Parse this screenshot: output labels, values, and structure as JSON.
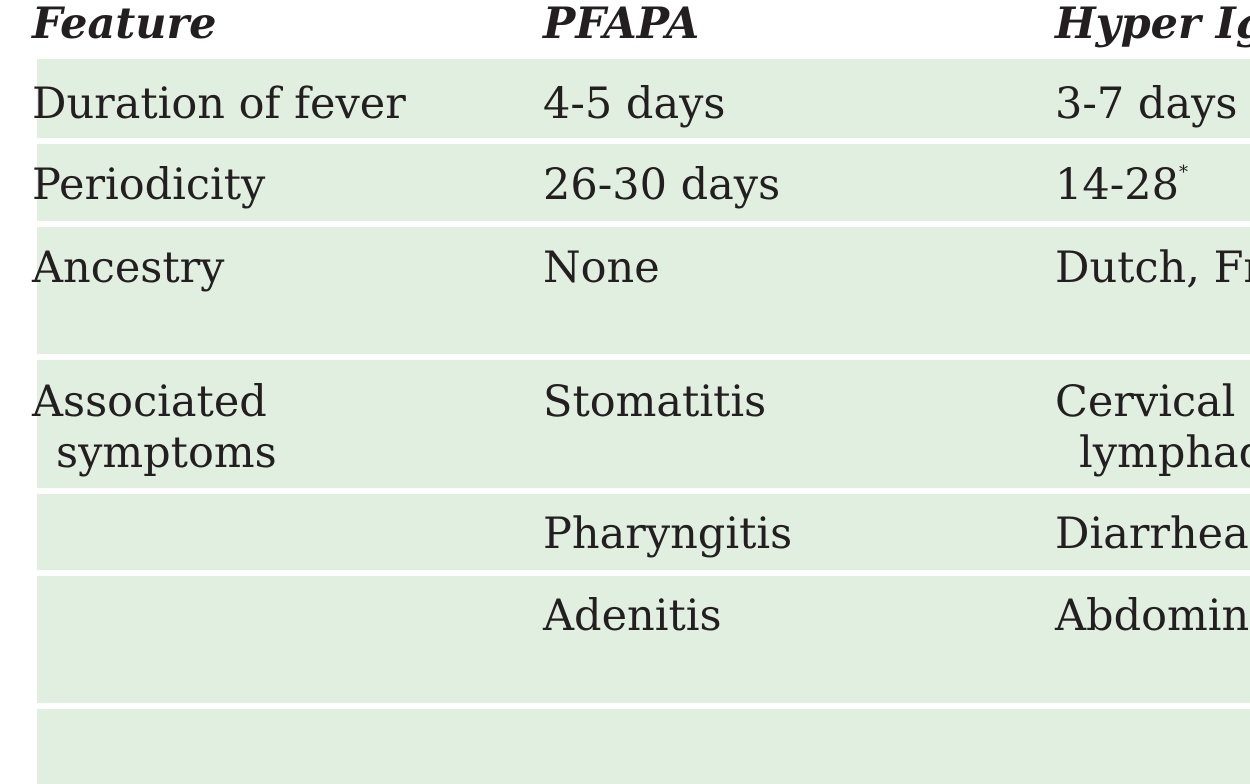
{
  "table": {
    "headers": [
      "Feature",
      "PFAPA",
      "Hyper Igl"
    ],
    "rows": [
      {
        "feature": "Duration of fever",
        "pfapa": "4-5 days",
        "hyper": "3-7 days"
      },
      {
        "feature": "Periodicity",
        "pfapa": "26-30 days",
        "hyper": "14-28",
        "hyper_mark": "*"
      },
      {
        "feature": "Ancestry",
        "pfapa": "None",
        "hyper": "Dutch, Fr"
      },
      {
        "feature_line1": "Associated",
        "feature_line2": "symptoms",
        "pfapa": "Stomatitis",
        "hyper_line1": "Cervical",
        "hyper_line2": "lymphad"
      },
      {
        "feature": "",
        "pfapa": "Pharyngitis",
        "hyper": "Diarrhea"
      },
      {
        "feature": "",
        "pfapa": "Adenitis",
        "hyper": "Abdomin"
      }
    ]
  }
}
